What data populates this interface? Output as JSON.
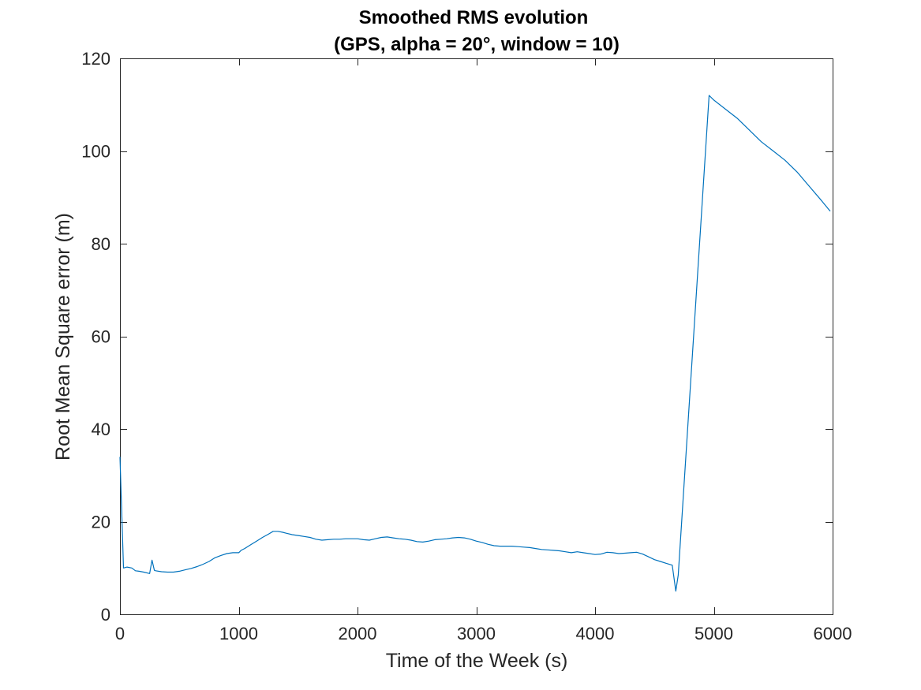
{
  "chart_data": {
    "type": "line",
    "title": "Smoothed RMS evolution",
    "subtitle": "(GPS, alpha = 20°, window = 10)",
    "xlabel": "Time of the Week (s)",
    "ylabel": "Root Mean Square error (m)",
    "xlim": [
      0,
      6000
    ],
    "ylim": [
      0,
      120
    ],
    "xticks": [
      0,
      1000,
      2000,
      3000,
      4000,
      5000,
      6000
    ],
    "xtick_labels": [
      "0",
      "1000",
      "2000",
      "3000",
      "4000",
      "5000",
      "6000"
    ],
    "yticks": [
      0,
      20,
      40,
      60,
      80,
      100,
      120
    ],
    "ytick_labels": [
      "0",
      "20",
      "40",
      "60",
      "80",
      "100",
      "120"
    ],
    "grid": false,
    "box": true,
    "series": [
      {
        "color": "#0072BD",
        "x": [
          0,
          30,
          60,
          100,
          130,
          160,
          200,
          250,
          270,
          290,
          300,
          350,
          400,
          450,
          500,
          550,
          600,
          650,
          700,
          750,
          800,
          850,
          900,
          950,
          1000,
          1020,
          1050,
          1100,
          1150,
          1200,
          1250,
          1290,
          1330,
          1370,
          1400,
          1450,
          1500,
          1550,
          1600,
          1650,
          1700,
          1750,
          1800,
          1850,
          1900,
          1950,
          2000,
          2050,
          2100,
          2150,
          2200,
          2250,
          2300,
          2350,
          2400,
          2450,
          2500,
          2550,
          2600,
          2650,
          2700,
          2750,
          2800,
          2850,
          2900,
          2950,
          3000,
          3050,
          3100,
          3150,
          3200,
          3250,
          3300,
          3350,
          3400,
          3450,
          3500,
          3550,
          3600,
          3650,
          3700,
          3750,
          3800,
          3850,
          3900,
          3950,
          4000,
          4050,
          4100,
          4150,
          4200,
          4250,
          4300,
          4350,
          4400,
          4450,
          4500,
          4550,
          4600,
          4650,
          4680,
          4700,
          4960,
          5000,
          5100,
          5200,
          5300,
          5400,
          5500,
          5600,
          5700,
          5800,
          5900,
          5980
        ],
        "y": [
          34,
          10,
          10.2,
          10,
          9.4,
          9.3,
          9.1,
          8.8,
          11.7,
          9.5,
          9.4,
          9.2,
          9.1,
          9.1,
          9.3,
          9.6,
          9.9,
          10.3,
          10.8,
          11.4,
          12.2,
          12.7,
          13.1,
          13.3,
          13.3,
          13.8,
          14.2,
          15.0,
          15.8,
          16.6,
          17.3,
          17.9,
          17.9,
          17.7,
          17.5,
          17.2,
          17.0,
          16.8,
          16.6,
          16.2,
          16.0,
          16.1,
          16.2,
          16.2,
          16.3,
          16.3,
          16.3,
          16.1,
          16.0,
          16.3,
          16.6,
          16.7,
          16.5,
          16.3,
          16.2,
          16.0,
          15.7,
          15.6,
          15.8,
          16.1,
          16.2,
          16.3,
          16.5,
          16.6,
          16.5,
          16.2,
          15.8,
          15.5,
          15.1,
          14.8,
          14.7,
          14.7,
          14.7,
          14.6,
          14.5,
          14.4,
          14.2,
          14.0,
          13.9,
          13.8,
          13.7,
          13.5,
          13.3,
          13.5,
          13.3,
          13.1,
          12.9,
          13.0,
          13.4,
          13.3,
          13.1,
          13.2,
          13.3,
          13.4,
          13.0,
          12.4,
          11.8,
          11.4,
          11.0,
          10.6,
          5.0,
          8.5,
          112.0,
          111.0,
          109.0,
          107.0,
          104.5,
          102.0,
          100.0,
          98.0,
          95.5,
          92.5,
          89.5,
          87.0
        ]
      }
    ]
  }
}
